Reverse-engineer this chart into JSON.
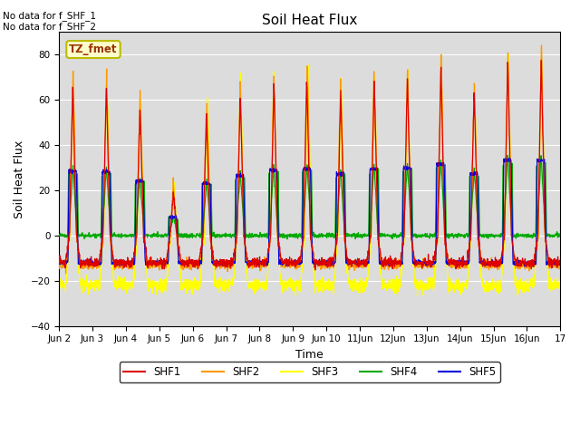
{
  "title": "Soil Heat Flux",
  "xlabel": "Time",
  "ylabel": "Soil Heat Flux",
  "ylim": [
    -40,
    90
  ],
  "yticks": [
    -40,
    -20,
    0,
    20,
    40,
    60,
    80
  ],
  "background_color": "#dcdcdc",
  "annotations": [
    "No data for f_SHF_1",
    "No data for f_SHF_2"
  ],
  "box_label": "TZ_fmet",
  "box_facecolor": "#ffffcc",
  "box_edgecolor": "#bbbb00",
  "legend_labels": [
    "SHF1",
    "SHF2",
    "SHF3",
    "SHF4",
    "SHF5"
  ],
  "legend_colors": [
    "#dd0000",
    "#ff9900",
    "#ffff00",
    "#00aa00",
    "#0000dd"
  ],
  "n_days": 15,
  "day_peaks": [
    67,
    67,
    57,
    19,
    55,
    63,
    68,
    70,
    65,
    70,
    71,
    75,
    65,
    79,
    79
  ],
  "shf3_extra": [
    2,
    2,
    2,
    5,
    8,
    10,
    5,
    5,
    4,
    4,
    3,
    4,
    4,
    2,
    2
  ],
  "night_base": -12,
  "night_yellow": -22
}
